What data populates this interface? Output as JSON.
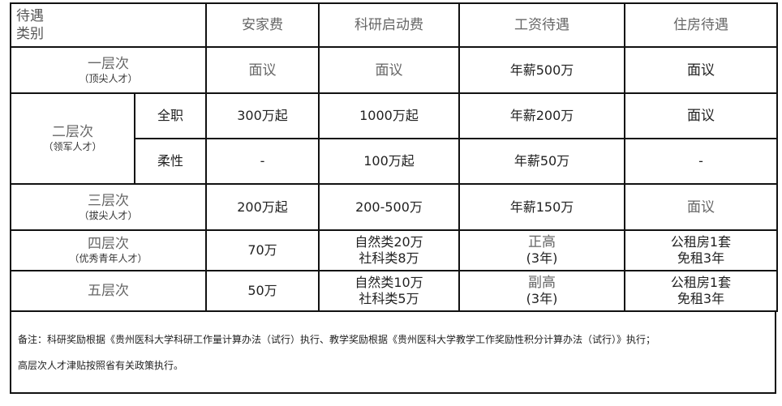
{
  "header": {
    "corner_line1": "待遇",
    "corner_line2": "类别",
    "columns": [
      "安家费",
      "科研启动费",
      "工资待遇",
      "住房待遇"
    ]
  },
  "rows": {
    "tier1": {
      "name": "一层次",
      "sub": "（顶尖人才）",
      "settle": "面议",
      "research": "面议",
      "salary": "年薪500万",
      "housing": "面议"
    },
    "tier2": {
      "name": "二层次",
      "sub": "（领军人才）",
      "fulltime": {
        "label": "全职",
        "settle": "300万起",
        "research": "1000万起",
        "salary": "年薪200万",
        "housing": "面议"
      },
      "flexible": {
        "label": "柔性",
        "settle": "-",
        "research": "100万起",
        "salary": "年薪50万",
        "housing": "-"
      }
    },
    "tier3": {
      "name": "三层次",
      "sub": "（拔尖人才）",
      "settle": "200万起",
      "research": "200-500万",
      "salary": "年薪150万",
      "housing": "面议"
    },
    "tier4": {
      "name": "四层次",
      "sub": "（优秀青年人才）",
      "settle": "70万",
      "research1": "自然类20万",
      "research2": "社科类8万",
      "salary1": "正高",
      "salary2": "(3年)",
      "housing1": "公租房1套",
      "housing2": "免租3年"
    },
    "tier5": {
      "name": "五层次",
      "settle": "50万",
      "research1": "自然类10万",
      "research2": "社科类5万",
      "salary1": "副高",
      "salary2": "(3年)",
      "housing1": "公租房1套",
      "housing2": "免租3年"
    }
  },
  "notes": {
    "line1": "备注：科研奖励根据《贵州医科大学科研工作量计算办法（试行）执行、教学奖励根据《贵州医科大学教学工作奖励性积分计算办法（试行）》执行；",
    "line2": "高层次人才津贴按照省有关政策执行。"
  }
}
